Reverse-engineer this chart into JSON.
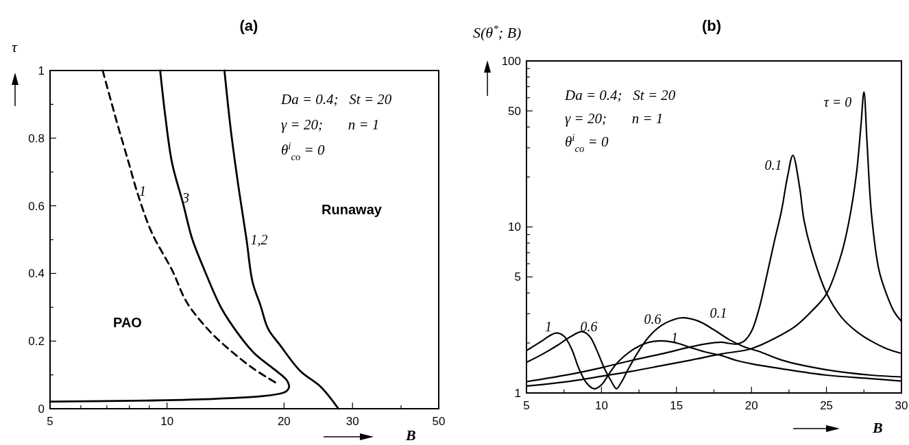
{
  "chart_data": [
    {
      "type": "line",
      "title": "(a)",
      "xlabel": "B",
      "ylabel": "τ",
      "log": "x",
      "xlim": [
        5,
        50
      ],
      "ylim": [
        0,
        1
      ],
      "xticks": [
        5,
        {
          "value": 6,
          "label": null
        },
        {
          "value": 7,
          "label": null
        },
        {
          "value": 8,
          "label": null
        },
        {
          "value": 9,
          "label": null
        },
        10,
        20,
        30,
        {
          "value": 40,
          "label": null
        },
        50
      ],
      "yticks": [
        0,
        {
          "value": 0.1,
          "label": null
        },
        0.2,
        {
          "value": 0.3,
          "label": null
        },
        0.4,
        {
          "value": 0.5,
          "label": null
        },
        0.6,
        {
          "value": 0.7,
          "label": null
        },
        0.8,
        {
          "value": 0.9,
          "label": null
        },
        1
      ],
      "grid": false,
      "legend": false,
      "marker": "none",
      "line_style": "solid",
      "series": [
        {
          "name": "1",
          "color": "#000000",
          "line_style": "dashed",
          "x": [
            6.83,
            7.43,
            7.97,
            8.38,
            9.14,
            10.3,
            11.25,
            12.9,
            14.7,
            16.8,
            19.3
          ],
          "values": [
            1,
            0.847,
            0.727,
            0.64,
            0.52,
            0.41,
            0.314,
            0.228,
            0.168,
            0.116,
            0.073
          ]
        },
        {
          "name": "3",
          "color": "#000000",
          "x": [
            9.6,
            9.9,
            10.3,
            11.0,
            11.6,
            12.5,
            13.8,
            15.3,
            16.8,
            18.9,
            20.3,
            20.6,
            20.3,
            19.9,
            17.6,
            12.5,
            8.8,
            5
          ],
          "values": [
            1,
            0.864,
            0.727,
            0.606,
            0.503,
            0.408,
            0.297,
            0.219,
            0.163,
            0.116,
            0.085,
            0.064,
            0.052,
            0.047,
            0.037,
            0.028,
            0.024,
            0.021
          ]
        },
        {
          "name": "1,2",
          "color": "#000000",
          "x": [
            14.05,
            14.6,
            15.3,
            16.0,
            16.6,
            17.4,
            18.2,
            19.5,
            22.0,
            24.9,
            27.6
          ],
          "values": [
            1,
            0.821,
            0.649,
            0.503,
            0.374,
            0.305,
            0.236,
            0.189,
            0.112,
            0.064,
            0
          ]
        }
      ],
      "annotations": [
        "Da = 0.4;   St = 20",
        "γ = 20;       n = 1",
        "θ$^{i}$$_{co}$ = 0",
        "PAO",
        "Runaway"
      ]
    },
    {
      "type": "line",
      "title": "(b)",
      "xlabel": "B",
      "ylabel": "S(θ$^{*}$; B)",
      "log": true,
      "xlim": [
        5,
        30
      ],
      "ylim": [
        1,
        100
      ],
      "xticks": [
        5,
        {
          "value": 7.5,
          "label": null
        },
        10,
        {
          "value": 12.5,
          "label": null
        },
        15,
        {
          "value": 17.5,
          "label": null
        },
        20,
        {
          "value": 22.5,
          "label": null
        },
        25,
        {
          "value": 27.5,
          "label": null
        },
        30
      ],
      "yticks": [
        1,
        {
          "value": 2,
          "label": null
        },
        {
          "value": 3,
          "label": null
        },
        {
          "value": 4,
          "label": null
        },
        5,
        {
          "value": 6,
          "label": null
        },
        {
          "value": 7,
          "label": null
        },
        {
          "value": 8,
          "label": null
        },
        {
          "value": 9,
          "label": null
        },
        10,
        {
          "value": 20,
          "label": null
        },
        {
          "value": 30,
          "label": null
        },
        {
          "value": 40,
          "label": null
        },
        50,
        {
          "value": 60,
          "label": null
        },
        {
          "value": 70,
          "label": null
        },
        {
          "value": 80,
          "label": null
        },
        {
          "value": 90,
          "label": null
        },
        100
      ],
      "grid": false,
      "legend": false,
      "marker": "none",
      "line_style": "solid",
      "series": [
        {
          "name": "τ = 0",
          "color": "#000000",
          "x": [
            5,
            8,
            10,
            12,
            14,
            16,
            18,
            20,
            22,
            23,
            24,
            25,
            26,
            26.5,
            27,
            27.3,
            27.5,
            27.7,
            28,
            28.5,
            29,
            29.5,
            30
          ],
          "values": [
            1.1,
            1.18,
            1.26,
            1.35,
            1.46,
            1.58,
            1.72,
            1.85,
            2.24,
            2.55,
            3.1,
            3.95,
            6.9,
            10.8,
            21,
            41,
            65,
            33,
            12,
            5.5,
            3.95,
            3.1,
            2.7
          ]
        },
        {
          "name": "0.1",
          "color": "#000000",
          "x": [
            5,
            8,
            10,
            12,
            14,
            16,
            17,
            18,
            18.5,
            19,
            19.5,
            20,
            20.5,
            21,
            21.5,
            22,
            22.4,
            22.76,
            23.2,
            23.5,
            24,
            25,
            26,
            27,
            28,
            29,
            30
          ],
          "values": [
            1.17,
            1.3,
            1.42,
            1.57,
            1.72,
            1.9,
            1.98,
            2.02,
            1.99,
            1.97,
            2.05,
            2.35,
            3.2,
            5,
            8,
            12.5,
            20,
            27,
            17.6,
            11,
            7.2,
            4,
            2.86,
            2.35,
            2.05,
            1.85,
            1.73
          ]
        },
        {
          "name": "0.6",
          "color": "#000000",
          "x": [
            5,
            6,
            7,
            8,
            8.7,
            9.2,
            9.7,
            10.2,
            10.6,
            11,
            11.3,
            11.8,
            12.5,
            13.2,
            14,
            15,
            15.5,
            16.5,
            17.5,
            18.5,
            19.5,
            20.5,
            22,
            25,
            28,
            30
          ],
          "values": [
            1.53,
            1.7,
            1.92,
            2.2,
            2.34,
            2.2,
            1.8,
            1.4,
            1.2,
            1.06,
            1.15,
            1.4,
            1.8,
            2.2,
            2.55,
            2.8,
            2.84,
            2.7,
            2.4,
            2.1,
            1.9,
            1.78,
            1.58,
            1.38,
            1.28,
            1.25
          ]
        },
        {
          "name": "1",
          "color": "#000000",
          "x": [
            5,
            6,
            6.5,
            7,
            7.5,
            8,
            8.5,
            9,
            9.5,
            10,
            10.5,
            11,
            12,
            13,
            14,
            15,
            16,
            17,
            18,
            19,
            20,
            22,
            25,
            28,
            30
          ],
          "values": [
            1.8,
            2.05,
            2.2,
            2.3,
            2.2,
            1.85,
            1.4,
            1.15,
            1.06,
            1.12,
            1.3,
            1.5,
            1.8,
            2.0,
            2.06,
            2.0,
            1.87,
            1.76,
            1.68,
            1.57,
            1.5,
            1.4,
            1.28,
            1.22,
            1.18
          ]
        }
      ],
      "annotations": [
        "Da = 0.4;   St = 20",
        "γ = 20;       n = 1",
        "θ$^{i}$$_{co}$ = 0"
      ]
    }
  ]
}
